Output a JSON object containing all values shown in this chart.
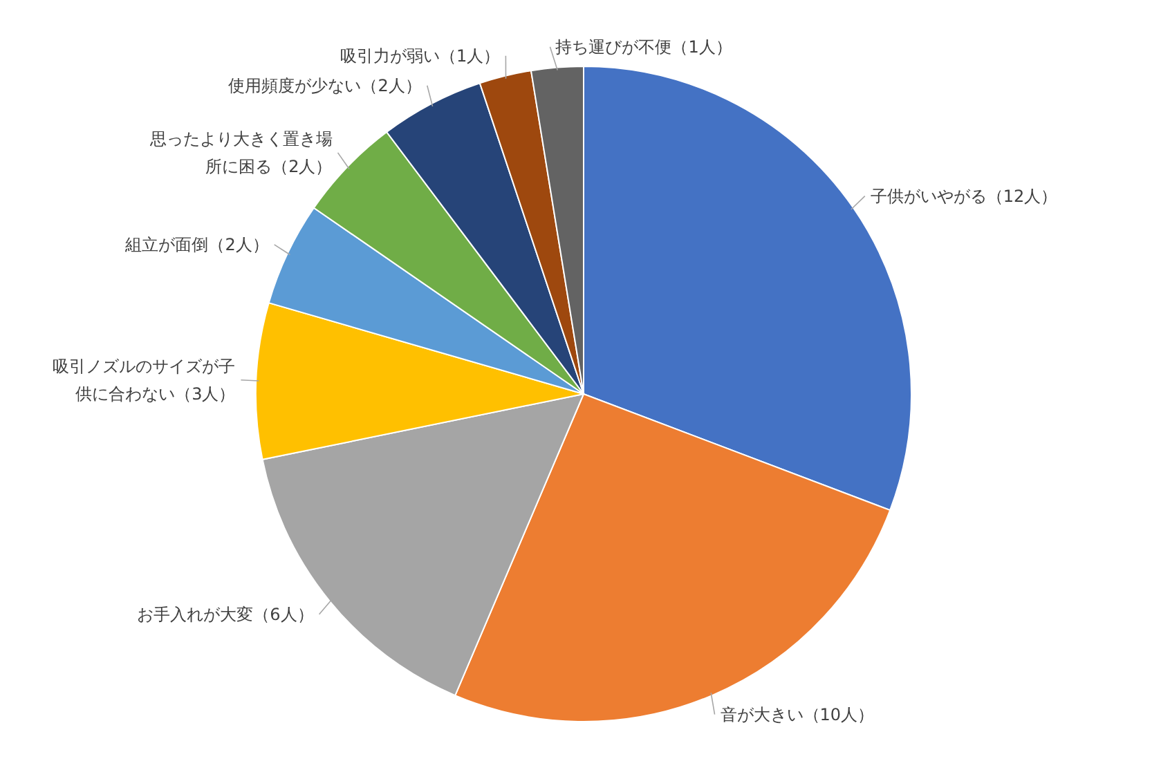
{
  "chart_data": {
    "type": "pie",
    "categories": [
      "子供がいやがる（12人）",
      "音が大きい（10人）",
      "お手入れが大変（6人）",
      "吸引ノズルのサイズが子供に合わない（3人）",
      "組立が面倒（2人）",
      "思ったより大きく置き場所に困る（2人）",
      "使用頻度が少ない（2人）",
      "吸引力が弱い（1人）",
      "持ち運びが不便（1人）"
    ],
    "values": [
      12,
      10,
      6,
      3,
      2,
      2,
      2,
      1,
      1
    ],
    "colors": [
      "#4472c4",
      "#ed7d31",
      "#a5a5a5",
      "#ffc000",
      "#5b9bd5",
      "#70ad47",
      "#264478",
      "#9e480e",
      "#636363"
    ]
  }
}
